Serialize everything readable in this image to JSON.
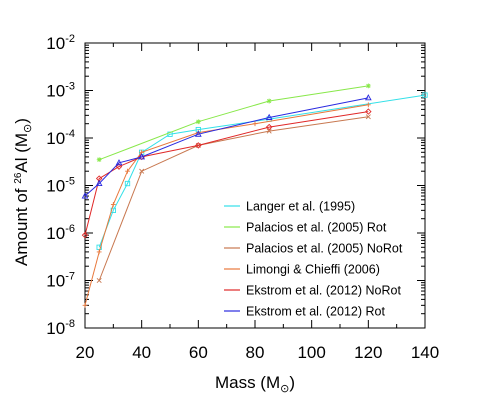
{
  "chart_data": {
    "type": "line",
    "xlabel": "Mass",
    "xlabel_unit": "M",
    "xlabel_unit_sub": "⊙",
    "ylabel_prefix": "Amount of ",
    "ylabel_sup": "26",
    "ylabel_main": "Al (M",
    "ylabel_sub": "⊙",
    "ylabel_close": ")",
    "xlim": [
      20,
      140
    ],
    "ylim_exp": [
      -8,
      -2
    ],
    "y_scale": "log",
    "x_ticks": [
      "20",
      "40",
      "60",
      "80",
      "100",
      "120",
      "140"
    ],
    "y_ticks": [
      {
        "exp": -8,
        "base": "10",
        "sup": "-8"
      },
      {
        "exp": -7,
        "base": "10",
        "sup": "-7"
      },
      {
        "exp": -6,
        "base": "10",
        "sup": "-6"
      },
      {
        "exp": -5,
        "base": "10",
        "sup": "-5"
      },
      {
        "exp": -4,
        "base": "10",
        "sup": "-4"
      },
      {
        "exp": -3,
        "base": "10",
        "sup": "-3"
      },
      {
        "exp": -2,
        "base": "10",
        "sup": "-2"
      }
    ],
    "legend_position": "lower-right",
    "series": [
      {
        "name": "Langer et al. (1995)",
        "color": "#33e0e8",
        "marker": "square",
        "points": [
          [
            25,
            5e-07
          ],
          [
            30,
            3e-06
          ],
          [
            35,
            1.1e-05
          ],
          [
            40,
            5e-05
          ],
          [
            50,
            0.00012
          ],
          [
            60,
            0.00015
          ],
          [
            85,
            0.00025
          ],
          [
            140,
            0.0008
          ]
        ]
      },
      {
        "name": "Palacios et al. (2005) Rot",
        "color": "#88e84a",
        "marker": "asterisk",
        "points": [
          [
            25,
            3.5e-05
          ],
          [
            60,
            0.00022
          ],
          [
            85,
            0.0006
          ],
          [
            120,
            0.00125
          ]
        ]
      },
      {
        "name": "Palacios et al. (2005) NoRot",
        "color": "#c87850",
        "marker": "x",
        "points": [
          [
            25,
            1e-07
          ],
          [
            40,
            2e-05
          ],
          [
            60,
            7e-05
          ],
          [
            85,
            0.00014
          ],
          [
            120,
            0.00028
          ]
        ]
      },
      {
        "name": "Limongi & Chieffi (2006)",
        "color": "#e8783c",
        "marker": "plus",
        "points": [
          [
            20,
            3e-08
          ],
          [
            25,
            4e-07
          ],
          [
            30,
            4e-06
          ],
          [
            35,
            2e-05
          ],
          [
            40,
            5e-05
          ],
          [
            60,
            0.00013
          ],
          [
            80,
            0.0002
          ],
          [
            120,
            0.0005
          ]
        ]
      },
      {
        "name": "Ekstrom et al. (2012) NoRot",
        "color": "#e02828",
        "marker": "diamond",
        "points": [
          [
            20,
            9e-07
          ],
          [
            25,
            1.4e-05
          ],
          [
            32,
            2.5e-05
          ],
          [
            40,
            4e-05
          ],
          [
            60,
            7e-05
          ],
          [
            85,
            0.00017
          ],
          [
            120,
            0.00036
          ]
        ]
      },
      {
        "name": "Ekstrom et al. (2012) Rot",
        "color": "#2a2ae0",
        "marker": "triangle",
        "points": [
          [
            20,
            6e-06
          ],
          [
            25,
            1.1e-05
          ],
          [
            32,
            3e-05
          ],
          [
            40,
            4e-05
          ],
          [
            60,
            0.00012
          ],
          [
            85,
            0.00027
          ],
          [
            120,
            0.0007
          ]
        ]
      }
    ]
  }
}
